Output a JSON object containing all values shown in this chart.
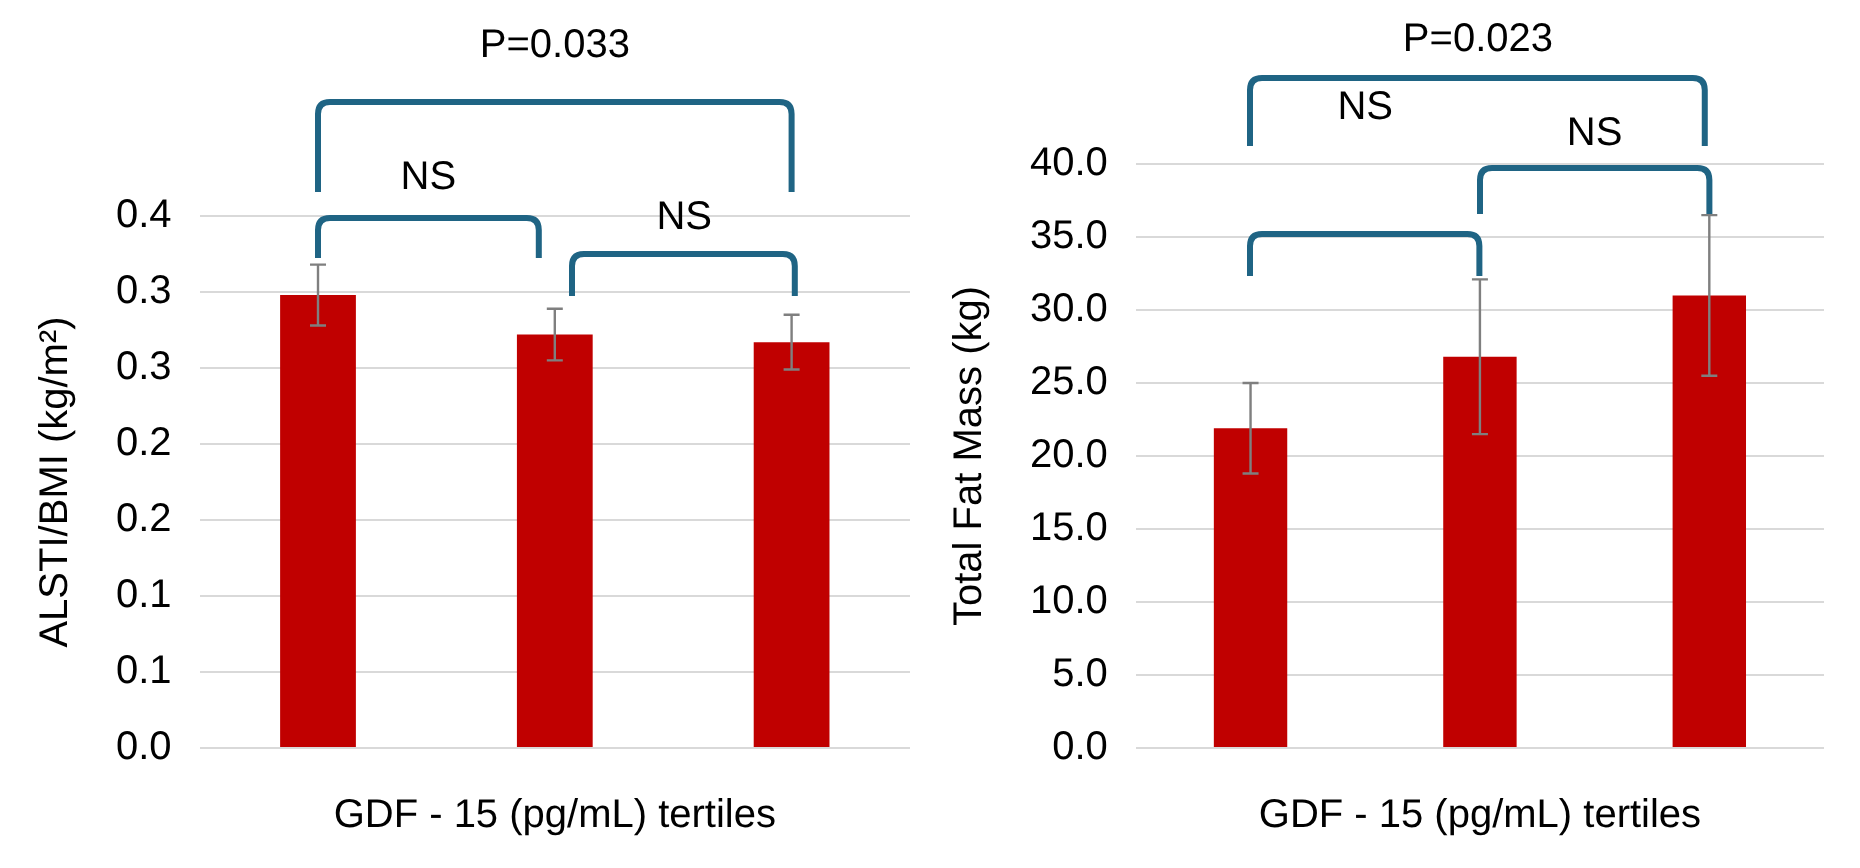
{
  "chart_data": [
    {
      "type": "bar",
      "xlabel": "GDF - 15 (pg/mL) tertiles",
      "ylabel": "ALSTI/BMI (kg/m²)",
      "categories": [
        null,
        null,
        null
      ],
      "series": [
        {
          "color": "#c00000",
          "values": [
            0.298,
            0.272,
            0.267
          ],
          "errors": [
            0.02,
            0.017,
            0.018
          ]
        }
      ],
      "ylim": [
        0,
        0.35
      ],
      "yticks": [
        {
          "value": 0,
          "label": "0.0"
        },
        {
          "value": 0.05,
          "label": "0.1"
        },
        {
          "value": 0.1,
          "label": "0.1"
        },
        {
          "value": 0.15,
          "label": "0.2"
        },
        {
          "value": 0.2,
          "label": "0.2"
        },
        {
          "value": 0.25,
          "label": "0.3"
        },
        {
          "value": 0.3,
          "label": "0.3"
        },
        {
          "value": 0.35,
          "label": "0.4"
        }
      ],
      "grid": "y",
      "legend": false,
      "annotations": [
        "P=0.033",
        "NS",
        "NS"
      ]
    },
    {
      "type": "bar",
      "xlabel": "GDF - 15 (pg/mL) tertiles",
      "ylabel": "Total Fat Mass (kg)",
      "categories": [
        null,
        null,
        null
      ],
      "series": [
        {
          "color": "#c00000",
          "values": [
            21.9,
            26.8,
            31.0
          ],
          "errors": [
            3.1,
            5.3,
            5.5
          ]
        }
      ],
      "ylim": [
        0,
        40
      ],
      "yticks": [
        {
          "value": 0,
          "label": "0.0"
        },
        {
          "value": 5,
          "label": "5.0"
        },
        {
          "value": 10,
          "label": "10.0"
        },
        {
          "value": 15,
          "label": "15.0"
        },
        {
          "value": 20,
          "label": "20.0"
        },
        {
          "value": 25,
          "label": "25.0"
        },
        {
          "value": 30,
          "label": "30.0"
        },
        {
          "value": 35,
          "label": "35.0"
        },
        {
          "value": 40,
          "label": "40.0"
        }
      ],
      "grid": "y",
      "legend": false,
      "annotations": [
        "P=0.023",
        "NS",
        "NS"
      ]
    }
  ]
}
